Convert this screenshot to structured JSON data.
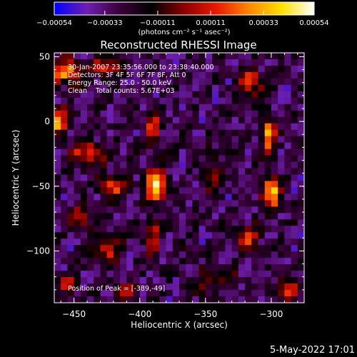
{
  "chart_data": {
    "type": "heatmap",
    "title": "Reconstructed RHESSI Image",
    "xlabel": "Heliocentric X (arcsec)",
    "ylabel": "Heliocentric Y (arcsec)",
    "xlim": [
      -465,
      -275
    ],
    "ylim": [
      -140,
      53
    ],
    "x_ticks": [
      -450,
      -400,
      -350,
      -300
    ],
    "y_ticks": [
      50,
      0,
      -50,
      -100
    ],
    "x_tick_labels": [
      "−450",
      "−400",
      "−350",
      "−300"
    ],
    "y_tick_labels": [
      "50",
      "0",
      "−50",
      "−100"
    ],
    "colorbar": {
      "range": [
        -0.00054,
        0.00054
      ],
      "ticks": [
        -0.00054,
        -0.00033,
        -0.00011,
        0.00011,
        0.00033,
        0.00054
      ],
      "tick_labels": [
        "−0.00054",
        "−0.00033",
        "−0.00011",
        "0.00011",
        "0.00033",
        "0.00054"
      ],
      "units_label": "(photons cm⁻² s⁻¹ asec⁻²)",
      "colors": [
        "#0000ff",
        "#6f1fb0",
        "#3a003a",
        "#000000",
        "#8c0000",
        "#e81a00",
        "#ff8800",
        "#ffe000",
        "#ffffff"
      ]
    },
    "image_grid": {
      "cols": 38,
      "rows": 39
    },
    "sources": [
      {
        "x": -388,
        "y": -49,
        "peak": 1.0,
        "sx": 5,
        "sy": 9
      },
      {
        "x": -390,
        "y": -5,
        "peak": 0.62,
        "sx": 4,
        "sy": 9
      },
      {
        "x": -390,
        "y": -90,
        "peak": 0.5,
        "sx": 4,
        "sy": 8
      },
      {
        "x": -455,
        "y": 38,
        "peak": 0.7,
        "sx": 9,
        "sy": 7
      },
      {
        "x": -462,
        "y": 0,
        "peak": 0.72,
        "sx": 5,
        "sy": 7
      },
      {
        "x": -440,
        "y": -25,
        "peak": 0.55,
        "sx": 8,
        "sy": 7
      },
      {
        "x": -420,
        "y": -50,
        "peak": 0.55,
        "sx": 7,
        "sy": 6
      },
      {
        "x": -445,
        "y": -75,
        "peak": 0.5,
        "sx": 6,
        "sy": 6
      },
      {
        "x": -425,
        "y": 42,
        "peak": 0.5,
        "sx": 7,
        "sy": 5
      },
      {
        "x": -425,
        "y": -100,
        "peak": 0.45,
        "sx": 7,
        "sy": 6
      },
      {
        "x": -300,
        "y": -55,
        "peak": 0.85,
        "sx": 5,
        "sy": 8
      },
      {
        "x": -302,
        "y": -10,
        "peak": 0.7,
        "sx": 4,
        "sy": 10
      },
      {
        "x": -315,
        "y": 30,
        "peak": 0.55,
        "sx": 6,
        "sy": 7
      },
      {
        "x": -318,
        "y": -90,
        "peak": 0.45,
        "sx": 6,
        "sy": 7
      },
      {
        "x": -288,
        "y": -130,
        "peak": 0.55,
        "sx": 7,
        "sy": 5
      },
      {
        "x": -340,
        "y": -120,
        "peak": 0.35,
        "sx": 8,
        "sy": 5
      },
      {
        "x": -345,
        "y": -40,
        "peak": 0.3,
        "sx": 5,
        "sy": 10
      },
      {
        "x": -352,
        "y": -130,
        "peak": 0.3,
        "sx": 6,
        "sy": 4
      },
      {
        "x": -410,
        "y": -130,
        "peak": 0.35,
        "sx": 6,
        "sy": 4
      },
      {
        "x": -455,
        "y": -125,
        "peak": 0.4,
        "sx": 6,
        "sy": 5
      }
    ],
    "annotations": {
      "time_range": "30-Jan-2007 23:35:56.000 to 23:38:40.000",
      "detectors": "Detectors: 3F 4F 5F 6F 7F 8F, Att 0",
      "energy": "Energy Range: 25.0 - 50.0 keV",
      "clean": "Clean    Total counts: 5.67E+03",
      "peak": "Position of Peak = [-389,-49]"
    }
  },
  "footer_date": "5-May-2022 17:01"
}
